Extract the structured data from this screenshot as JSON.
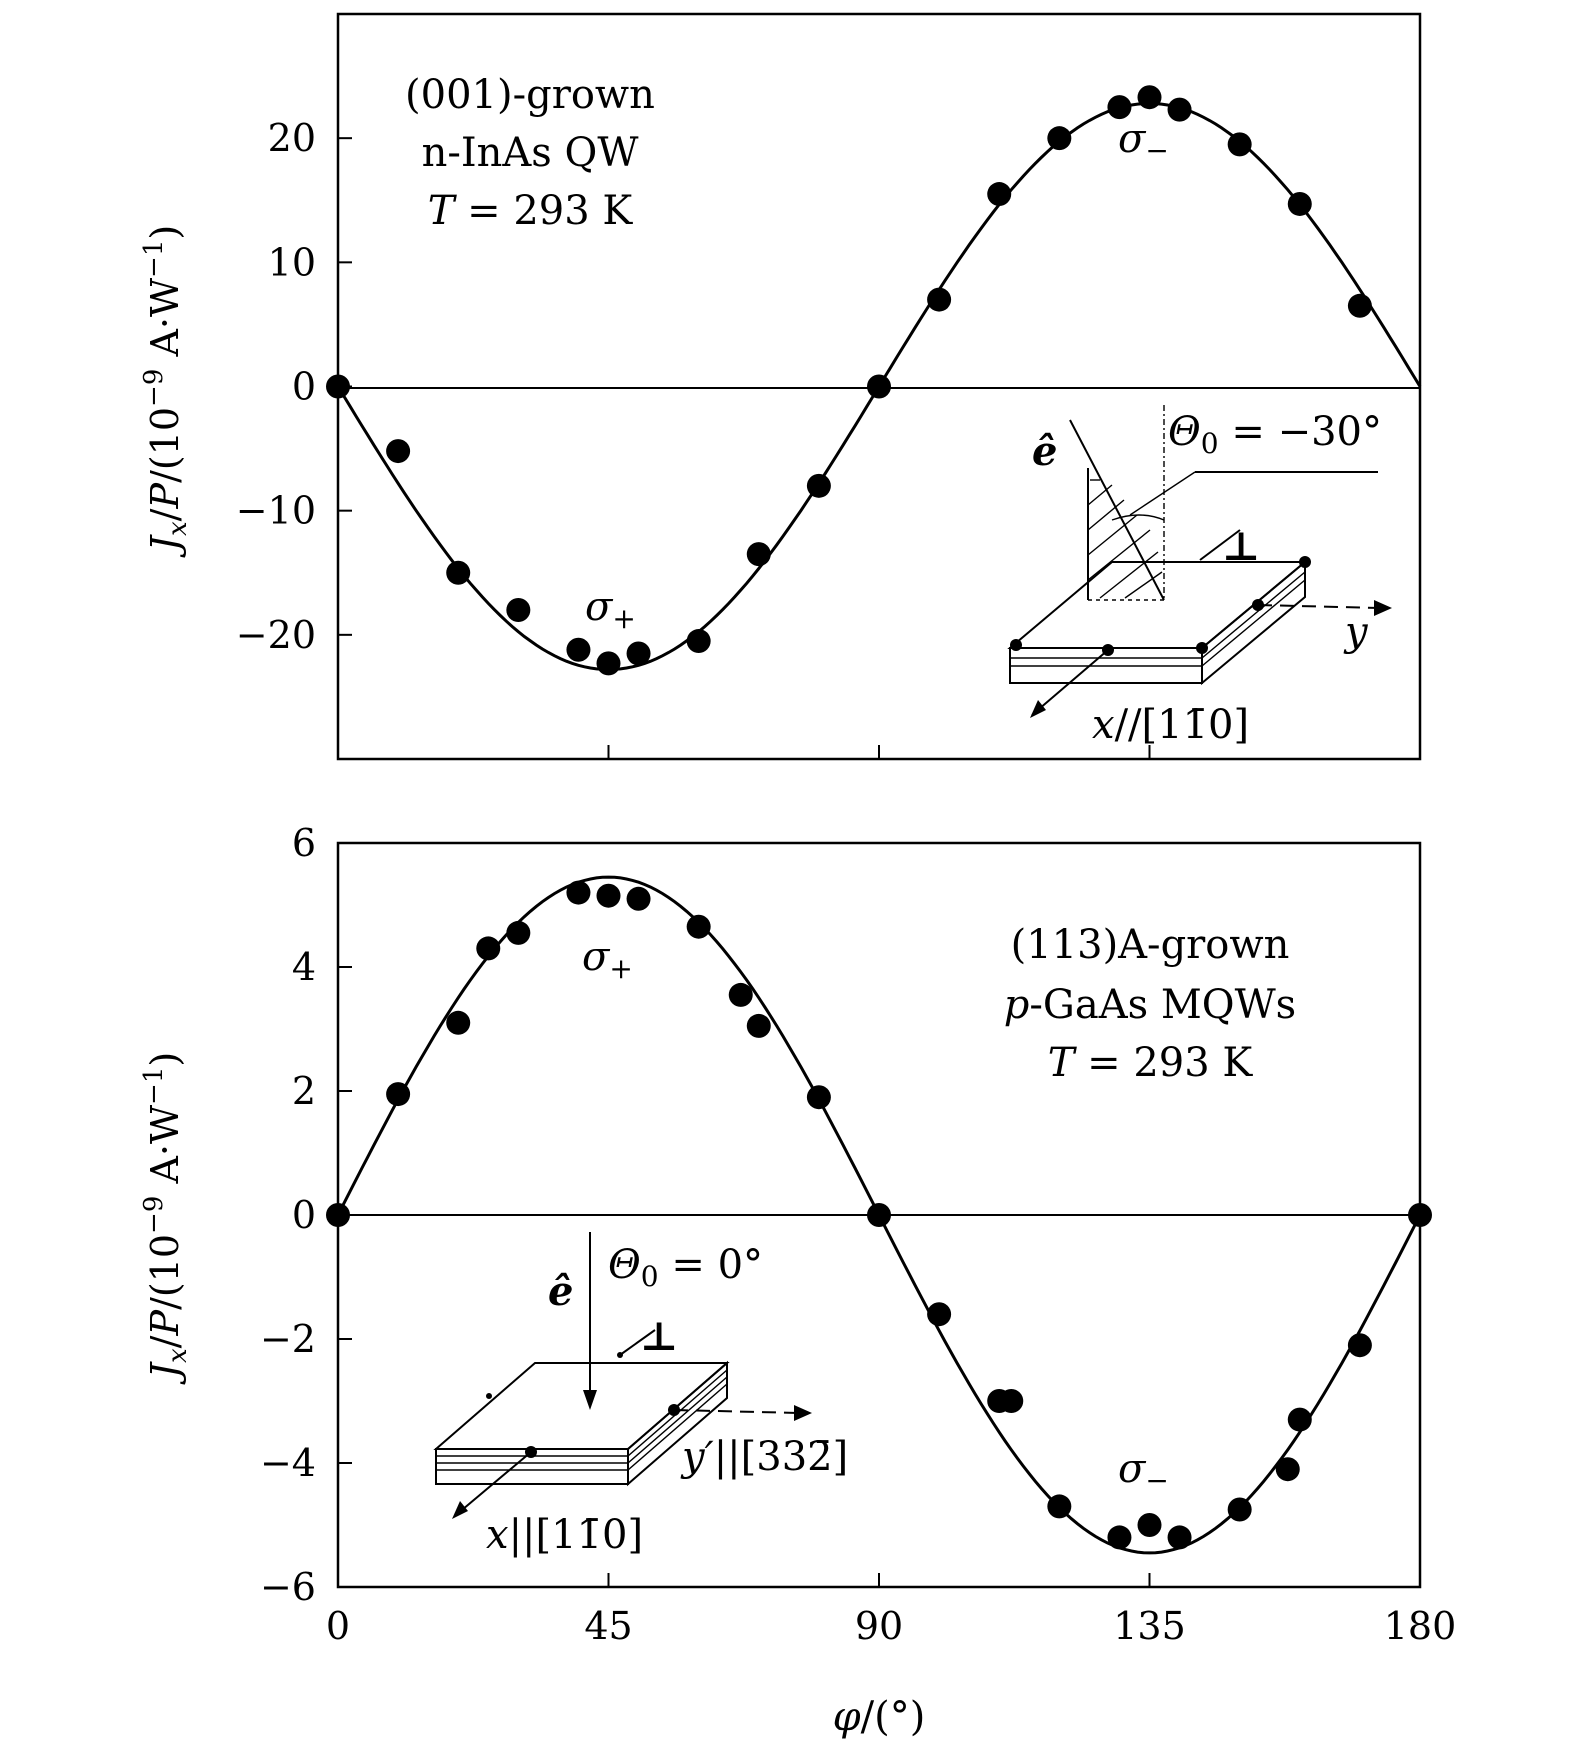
{
  "chart_data": [
    {
      "type": "scatter",
      "panel": "top",
      "annotation_lines": [
        "(001)-grown",
        "n-InAs QW",
        "T = 293 K"
      ],
      "ylabel": "J_x/P/(10^-9 A·W^-1)",
      "ylim": [
        -30,
        30
      ],
      "yticks": [
        -20,
        -10,
        0,
        10,
        20
      ],
      "ytick_labels": [
        "−20",
        "−10",
        "0",
        "10",
        "20"
      ],
      "xlim": [
        0,
        180
      ],
      "xticks": [
        0,
        45,
        90,
        135,
        180
      ],
      "sigma_plus_label": "σ+",
      "sigma_minus_label": "σ−",
      "inset": {
        "e_label": "ê",
        "theta_label": "Θ0 = −30°",
        "y_label": "y",
        "x_label": "x//[11̄0]",
        "perp_symbol": "⊥"
      },
      "fit_amplitude": 22.8,
      "series": [
        {
          "name": "measured",
          "x": [
            0,
            10,
            20,
            30,
            40,
            45,
            50,
            60,
            70,
            80,
            90,
            100,
            110,
            120,
            130,
            135,
            140,
            150,
            160,
            170
          ],
          "y": [
            0,
            -5.2,
            -15,
            -18,
            -21.2,
            -22.3,
            -21.5,
            -20.5,
            -13.5,
            -8,
            0,
            7,
            15.5,
            20,
            22.5,
            23.3,
            22.3,
            19.5,
            14.7,
            6.5
          ]
        },
        {
          "name": "fit",
          "function": "-A*sin(2*phi)"
        }
      ]
    },
    {
      "type": "scatter",
      "panel": "bottom",
      "annotation_lines": [
        "(113)A-grown",
        "p-GaAs MQWs",
        "T = 293 K"
      ],
      "ylabel": "J_x/P/(10^-9 A·W^-1)",
      "ylim": [
        -6,
        6
      ],
      "yticks": [
        -6,
        -4,
        -2,
        0,
        2,
        4,
        6
      ],
      "ytick_labels": [
        "−6",
        "−4",
        "−2",
        "0",
        "2",
        "4",
        "6"
      ],
      "xlim": [
        0,
        180
      ],
      "xticks": [
        0,
        45,
        90,
        135,
        180
      ],
      "xtick_labels": [
        "0",
        "45",
        "90",
        "135",
        "180"
      ],
      "xlabel": "φ/(°)",
      "sigma_plus_label": "σ+",
      "sigma_minus_label": "σ−",
      "inset": {
        "e_label": "ê",
        "theta_label": "Θ0 = 0°",
        "y_label": "y′||[332̄]",
        "x_label": "x||[11̄0]",
        "perp_symbol": "⊥"
      },
      "fit_amplitude": 5.45,
      "series": [
        {
          "name": "measured",
          "x": [
            0,
            10,
            20,
            25,
            30,
            40,
            45,
            50,
            60,
            67,
            70,
            80,
            90,
            100,
            110,
            112,
            120,
            130,
            135,
            140,
            150,
            158,
            160,
            170,
            180
          ],
          "y": [
            0,
            1.95,
            3.1,
            4.3,
            4.55,
            5.2,
            5.15,
            5.1,
            4.65,
            3.55,
            3.05,
            1.9,
            0,
            -1.6,
            -3,
            -3,
            -4.7,
            -5.2,
            -5,
            -5.2,
            -4.75,
            -4.1,
            -3.3,
            -2.1,
            0
          ]
        },
        {
          "name": "fit",
          "function": "A*sin(2*phi)"
        }
      ]
    }
  ]
}
